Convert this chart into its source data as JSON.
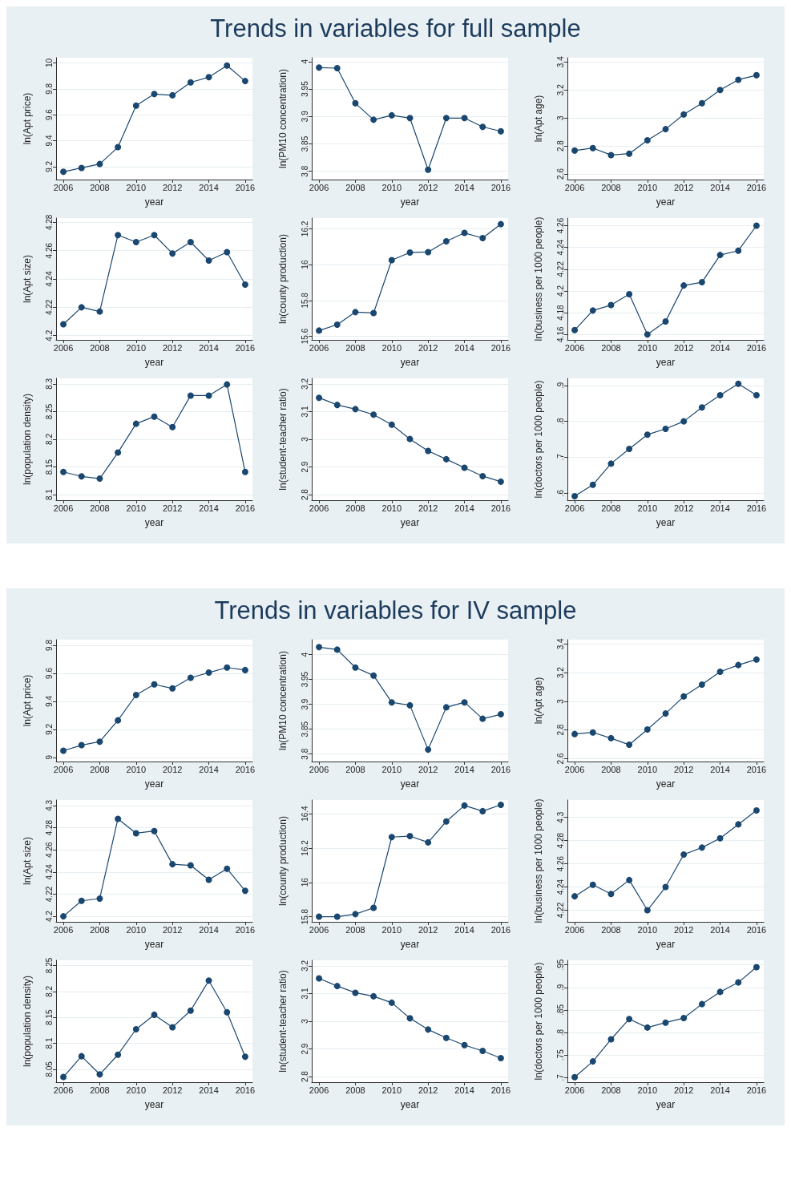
{
  "chart_data": [
    {
      "type": "line",
      "xlabel": "year",
      "ylabel": "ln(Apt price)",
      "x": [
        2006,
        2007,
        2008,
        2009,
        2010,
        2011,
        2012,
        2013,
        2014,
        2015,
        2016
      ],
      "values": [
        9.16,
        9.19,
        9.22,
        9.35,
        9.67,
        9.76,
        9.75,
        9.85,
        9.89,
        9.98,
        9.86
      ],
      "color": "#1a476f",
      "xlim": [
        2005.6,
        2016.4
      ],
      "xticks": [
        2006,
        2008,
        2010,
        2012,
        2014,
        2016
      ],
      "ylim": [
        9.1,
        10.04
      ],
      "yticks": [
        9.2,
        9.4,
        9.6,
        9.8,
        10
      ],
      "grid": "y",
      "marker": "circle"
    },
    {
      "type": "line",
      "title": "Trends in variables for full sample",
      "xlabel": "year",
      "ylabel": "ln(PM10 concentration)",
      "x": [
        2006,
        2007,
        2008,
        2009,
        2010,
        2011,
        2012,
        2013,
        2014,
        2015,
        2016
      ],
      "values": [
        3.989,
        3.988,
        3.924,
        3.894,
        3.902,
        3.897,
        3.803,
        3.897,
        3.897,
        3.881,
        3.873
      ],
      "color": "#1a476f",
      "xlim": [
        2005.6,
        2016.4
      ],
      "xticks": [
        2006,
        2008,
        2010,
        2012,
        2014,
        2016
      ],
      "ylim": [
        3.785,
        4.007
      ],
      "yticks": [
        3.8,
        3.85,
        3.9,
        3.95,
        4
      ],
      "grid": "y",
      "marker": "circle"
    },
    {
      "type": "line",
      "xlabel": "year",
      "ylabel": "ln(Apt age)",
      "x": [
        2006,
        2007,
        2008,
        2009,
        2010,
        2011,
        2012,
        2013,
        2014,
        2015,
        2016
      ],
      "values": [
        2.767,
        2.785,
        2.735,
        2.745,
        2.84,
        2.92,
        3.025,
        3.105,
        3.2,
        3.273,
        3.305
      ],
      "color": "#1a476f",
      "xlim": [
        2005.6,
        2016.4
      ],
      "xticks": [
        2006,
        2008,
        2010,
        2012,
        2014,
        2016
      ],
      "ylim": [
        2.56,
        3.43
      ],
      "yticks": [
        2.6,
        2.8,
        3,
        3.2,
        3.4
      ],
      "grid": "y",
      "marker": "circle"
    },
    {
      "type": "line",
      "xlabel": "year",
      "ylabel": "ln(Apt size)",
      "x": [
        2006,
        2007,
        2008,
        2009,
        2010,
        2011,
        2012,
        2013,
        2014,
        2015,
        2016
      ],
      "values": [
        4.208,
        4.22,
        4.217,
        4.271,
        4.266,
        4.271,
        4.258,
        4.266,
        4.253,
        4.259,
        4.236
      ],
      "color": "#1a476f",
      "xlim": [
        2005.6,
        2016.4
      ],
      "xticks": [
        2006,
        2008,
        2010,
        2012,
        2014,
        2016
      ],
      "ylim": [
        4.197,
        4.283
      ],
      "yticks": [
        4.2,
        4.22,
        4.24,
        4.26,
        4.28
      ],
      "grid": "y",
      "marker": "circle"
    },
    {
      "type": "line",
      "xlabel": "year",
      "ylabel": "ln(county production)",
      "x": [
        2006,
        2007,
        2008,
        2009,
        2010,
        2011,
        2012,
        2013,
        2014,
        2015,
        2016
      ],
      "values": [
        15.632,
        15.665,
        15.735,
        15.73,
        16.025,
        16.068,
        16.07,
        16.13,
        16.177,
        16.148,
        16.226
      ],
      "color": "#1a476f",
      "xlim": [
        2005.6,
        2016.4
      ],
      "xticks": [
        2006,
        2008,
        2010,
        2012,
        2014,
        2016
      ],
      "ylim": [
        15.58,
        16.26
      ],
      "yticks": [
        15.6,
        15.8,
        16,
        16.2
      ],
      "grid": "y",
      "marker": "circle"
    },
    {
      "type": "line",
      "xlabel": "year",
      "ylabel": "ln(business per 1000 people)",
      "x": [
        2006,
        2007,
        2008,
        2009,
        2010,
        2011,
        2012,
        2013,
        2014,
        2015,
        2016
      ],
      "values": [
        4.164,
        4.182,
        4.187,
        4.197,
        4.16,
        4.172,
        4.205,
        4.208,
        4.233,
        4.237,
        4.26
      ],
      "color": "#1a476f",
      "xlim": [
        2005.6,
        2016.4
      ],
      "xticks": [
        2006,
        2008,
        2010,
        2012,
        2014,
        2016
      ],
      "ylim": [
        4.155,
        4.267
      ],
      "yticks": [
        4.16,
        4.18,
        4.2,
        4.22,
        4.24,
        4.26
      ],
      "grid": "y",
      "marker": "circle"
    },
    {
      "type": "line",
      "xlabel": "year",
      "ylabel": "ln(population density)",
      "x": [
        2006,
        2007,
        2008,
        2009,
        2010,
        2011,
        2012,
        2013,
        2014,
        2015,
        2016
      ],
      "values": [
        8.141,
        8.133,
        8.129,
        8.176,
        8.228,
        8.241,
        8.222,
        8.279,
        8.279,
        8.299,
        8.141
      ],
      "color": "#1a476f",
      "xlim": [
        2005.6,
        2016.4
      ],
      "xticks": [
        2006,
        2008,
        2010,
        2012,
        2014,
        2016
      ],
      "ylim": [
        8.09,
        8.31
      ],
      "yticks": [
        8.1,
        8.15,
        8.2,
        8.25,
        8.3
      ],
      "grid": "y",
      "marker": "circle"
    },
    {
      "type": "line",
      "xlabel": "year",
      "ylabel": "ln(student-teacher ratio)",
      "x": [
        2006,
        2007,
        2008,
        2009,
        2010,
        2011,
        2012,
        2013,
        2014,
        2015,
        2016
      ],
      "values": [
        3.15,
        3.124,
        3.109,
        3.089,
        3.053,
        3.001,
        2.958,
        2.928,
        2.897,
        2.867,
        2.847
      ],
      "color": "#1a476f",
      "xlim": [
        2005.6,
        2016.4
      ],
      "xticks": [
        2006,
        2008,
        2010,
        2012,
        2014,
        2016
      ],
      "ylim": [
        2.78,
        3.22
      ],
      "yticks": [
        2.8,
        2.9,
        3,
        3.1,
        3.2
      ],
      "grid": "y",
      "marker": "circle"
    },
    {
      "type": "line",
      "xlabel": "year",
      "ylabel": "ln(doctors per 1000 people)",
      "x": [
        2006,
        2007,
        2008,
        2009,
        2010,
        2011,
        2012,
        2013,
        2014,
        2015,
        2016
      ],
      "values": [
        0.591,
        0.623,
        0.682,
        0.723,
        0.763,
        0.779,
        0.8,
        0.839,
        0.873,
        0.905,
        0.873
      ],
      "color": "#1a476f",
      "xlim": [
        2005.6,
        2016.4
      ],
      "xticks": [
        2006,
        2008,
        2010,
        2012,
        2014,
        2016
      ],
      "ylim": [
        0.58,
        0.92
      ],
      "yticks": [
        {
          "value": 0.6,
          "label": ".6"
        },
        {
          "value": 0.7,
          "label": ".7"
        },
        {
          "value": 0.8,
          "label": ".8"
        },
        {
          "value": 0.9,
          "label": ".9"
        }
      ],
      "grid": "y",
      "marker": "circle"
    },
    {
      "type": "line",
      "xlabel": "year",
      "ylabel": "ln(Apt price)",
      "x": [
        2006,
        2007,
        2008,
        2009,
        2010,
        2011,
        2012,
        2013,
        2014,
        2015,
        2016
      ],
      "values": [
        9.047,
        9.087,
        9.112,
        9.264,
        9.445,
        9.521,
        9.492,
        9.568,
        9.605,
        9.641,
        9.623
      ],
      "color": "#1a476f",
      "xlim": [
        2005.6,
        2016.4
      ],
      "xticks": [
        2006,
        2008,
        2010,
        2012,
        2014,
        2016
      ],
      "ylim": [
        8.97,
        9.84
      ],
      "yticks": [
        9,
        9.2,
        9.4,
        9.6,
        9.8
      ],
      "grid": "y",
      "marker": "circle"
    },
    {
      "type": "line",
      "title": "Trends in variables for IV sample",
      "xlabel": "year",
      "ylabel": "ln(PM10 concentration)",
      "x": [
        2006,
        2007,
        2008,
        2009,
        2010,
        2011,
        2012,
        2013,
        2014,
        2015,
        2016
      ],
      "values": [
        4.015,
        4.01,
        3.974,
        3.958,
        3.904,
        3.898,
        3.809,
        3.894,
        3.904,
        3.871,
        3.88
      ],
      "color": "#1a476f",
      "xlim": [
        2005.6,
        2016.4
      ],
      "xticks": [
        2006,
        2008,
        2010,
        2012,
        2014,
        2016
      ],
      "ylim": [
        3.785,
        4.03
      ],
      "yticks": [
        3.8,
        3.85,
        3.9,
        3.95,
        4
      ],
      "grid": "y",
      "marker": "circle"
    },
    {
      "type": "line",
      "xlabel": "year",
      "ylabel": "ln(Apt age)",
      "x": [
        2006,
        2007,
        2008,
        2009,
        2010,
        2011,
        2012,
        2013,
        2014,
        2015,
        2016
      ],
      "values": [
        2.772,
        2.783,
        2.743,
        2.697,
        2.804,
        2.915,
        3.034,
        3.117,
        3.206,
        3.253,
        3.292
      ],
      "color": "#1a476f",
      "xlim": [
        2005.6,
        2016.4
      ],
      "xticks": [
        2006,
        2008,
        2010,
        2012,
        2014,
        2016
      ],
      "ylim": [
        2.58,
        3.43
      ],
      "yticks": [
        2.6,
        2.8,
        3,
        3.2,
        3.4
      ],
      "grid": "y",
      "marker": "circle"
    },
    {
      "type": "line",
      "xlabel": "year",
      "ylabel": "ln(Apt size)",
      "x": [
        2006,
        2007,
        2008,
        2009,
        2010,
        2011,
        2012,
        2013,
        2014,
        2015,
        2016
      ],
      "values": [
        4.2,
        4.214,
        4.216,
        4.288,
        4.275,
        4.277,
        4.247,
        4.246,
        4.233,
        4.243,
        4.223
      ],
      "color": "#1a476f",
      "xlim": [
        2005.6,
        2016.4
      ],
      "xticks": [
        2006,
        2008,
        2010,
        2012,
        2014,
        2016
      ],
      "ylim": [
        4.195,
        4.305
      ],
      "yticks": [
        4.2,
        4.22,
        4.24,
        4.26,
        4.28,
        4.3
      ],
      "grid": "y",
      "marker": "circle"
    },
    {
      "type": "line",
      "xlabel": "year",
      "ylabel": "ln(county production)",
      "x": [
        2006,
        2007,
        2008,
        2009,
        2010,
        2011,
        2012,
        2013,
        2014,
        2015,
        2016
      ],
      "values": [
        15.8,
        15.8,
        15.815,
        15.852,
        16.264,
        16.27,
        16.233,
        16.355,
        16.448,
        16.415,
        16.452
      ],
      "color": "#1a476f",
      "xlim": [
        2005.6,
        2016.4
      ],
      "xticks": [
        2006,
        2008,
        2010,
        2012,
        2014,
        2016
      ],
      "ylim": [
        15.77,
        16.48
      ],
      "yticks": [
        15.8,
        16,
        16.2,
        16.4
      ],
      "grid": "y",
      "marker": "circle"
    },
    {
      "type": "line",
      "xlabel": "year",
      "ylabel": "ln(business per 1000 people)",
      "x": [
        2006,
        2007,
        2008,
        2009,
        2010,
        2011,
        2012,
        2013,
        2014,
        2015,
        2016
      ],
      "values": [
        4.232,
        4.242,
        4.234,
        4.246,
        4.22,
        4.24,
        4.268,
        4.274,
        4.282,
        4.294,
        4.306
      ],
      "color": "#1a476f",
      "xlim": [
        2005.6,
        2016.4
      ],
      "xticks": [
        2006,
        2008,
        2010,
        2012,
        2014,
        2016
      ],
      "ylim": [
        4.21,
        4.315
      ],
      "yticks": [
        4.22,
        4.24,
        4.26,
        4.28,
        4.3
      ],
      "grid": "y",
      "marker": "circle"
    },
    {
      "type": "line",
      "xlabel": "year",
      "ylabel": "ln(population density)",
      "x": [
        2006,
        2007,
        2008,
        2009,
        2010,
        2011,
        2012,
        2013,
        2014,
        2015,
        2016
      ],
      "values": [
        8.035,
        8.075,
        8.04,
        8.078,
        8.127,
        8.155,
        8.131,
        8.163,
        8.221,
        8.16,
        8.074
      ],
      "color": "#1a476f",
      "xlim": [
        2005.6,
        2016.4
      ],
      "xticks": [
        2006,
        2008,
        2010,
        2012,
        2014,
        2016
      ],
      "ylim": [
        8.025,
        8.26
      ],
      "yticks": [
        8.05,
        8.1,
        8.15,
        8.2,
        8.25
      ],
      "grid": "y",
      "marker": "circle"
    },
    {
      "type": "line",
      "xlabel": "year",
      "ylabel": "ln(student-teacher ratio)",
      "x": [
        2006,
        2007,
        2008,
        2009,
        2010,
        2011,
        2012,
        2013,
        2014,
        2015,
        2016
      ],
      "values": [
        3.155,
        3.127,
        3.103,
        3.09,
        3.067,
        3.011,
        2.97,
        2.94,
        2.914,
        2.893,
        2.867
      ],
      "color": "#1a476f",
      "xlim": [
        2005.6,
        2016.4
      ],
      "xticks": [
        2006,
        2008,
        2010,
        2012,
        2014,
        2016
      ],
      "ylim": [
        2.78,
        3.22
      ],
      "yticks": [
        2.8,
        2.9,
        3,
        3.1,
        3.2
      ],
      "grid": "y",
      "marker": "circle"
    },
    {
      "type": "line",
      "xlabel": "year",
      "ylabel": "ln(doctors per 1000 people)",
      "x": [
        2006,
        2007,
        2008,
        2009,
        2010,
        2011,
        2012,
        2013,
        2014,
        2015,
        2016
      ],
      "values": [
        0.701,
        0.736,
        0.785,
        0.83,
        0.811,
        0.822,
        0.832,
        0.863,
        0.89,
        0.911,
        0.945
      ],
      "color": "#1a476f",
      "xlim": [
        2005.6,
        2016.4
      ],
      "xticks": [
        2006,
        2008,
        2010,
        2012,
        2014,
        2016
      ],
      "ylim": [
        0.69,
        0.96
      ],
      "yticks": [
        {
          "value": 0.7,
          "label": ".7"
        },
        {
          "value": 0.75,
          "label": ".75"
        },
        {
          "value": 0.8,
          "label": ".8"
        },
        {
          "value": 0.85,
          "label": ".85"
        },
        {
          "value": 0.9,
          "label": ".9"
        },
        {
          "value": 0.95,
          "label": ".95"
        }
      ],
      "grid": "y",
      "marker": "circle"
    }
  ]
}
